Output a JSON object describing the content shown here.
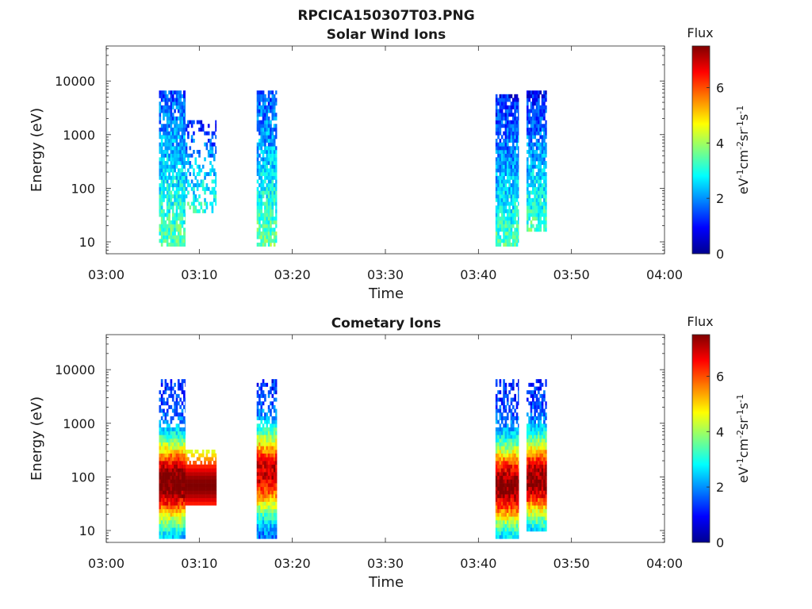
{
  "figure": {
    "filename_title": "RPCICA150307T03.PNG"
  },
  "colors": {
    "background": "#ffffff",
    "axis": "#262626",
    "colormap": "jet"
  },
  "chart_data": [
    {
      "type": "heatmap",
      "title": "Solar Wind Ions",
      "xlabel": "Time",
      "ylabel": "Energy (eV)",
      "yscale": "log",
      "xlim": [
        "03:00",
        "04:00"
      ],
      "ylim": [
        6,
        45000
      ],
      "xticks": [
        "03:00",
        "03:10",
        "03:20",
        "03:30",
        "03:40",
        "03:50",
        "04:00"
      ],
      "yticks": [
        "10",
        "100",
        "1000",
        "10000"
      ],
      "colorbar": {
        "label": "Flux",
        "unit_label": "eV-1cm-2sr-1s-1",
        "range": [
          0,
          7.5
        ],
        "ticks": [
          "0",
          "2",
          "4",
          "6"
        ]
      },
      "grid": false,
      "intervals": [
        {
          "start": "03:05:40",
          "end": "03:08:30",
          "emin": 8,
          "emax": 7000,
          "flux_low": 3.5,
          "flux_high": 1.5
        },
        {
          "start": "03:08:30",
          "end": "03:11:50",
          "emin": 35,
          "emax": 1800,
          "flux_low": 3.2,
          "flux_high": 1.2,
          "sparse": true
        },
        {
          "start": "03:16:10",
          "end": "03:18:20",
          "emin": 8,
          "emax": 7000,
          "flux_low": 3.6,
          "flux_high": 1.4
        },
        {
          "start": "03:41:50",
          "end": "03:44:20",
          "emin": 8,
          "emax": 6000,
          "flux_low": 3.4,
          "flux_high": 1.0
        },
        {
          "start": "03:45:10",
          "end": "03:47:20",
          "emin": 15,
          "emax": 7000,
          "flux_low": 3.4,
          "flux_high": 1.0
        }
      ]
    },
    {
      "type": "heatmap",
      "title": "Cometary Ions",
      "xlabel": "Time",
      "ylabel": "Energy (eV)",
      "yscale": "log",
      "xlim": [
        "03:00",
        "04:00"
      ],
      "ylim": [
        6,
        45000
      ],
      "xticks": [
        "03:00",
        "03:10",
        "03:20",
        "03:30",
        "03:40",
        "03:50",
        "04:00"
      ],
      "yticks": [
        "10",
        "100",
        "1000",
        "10000"
      ],
      "colorbar": {
        "label": "Flux",
        "unit_label": "eV-1cm-2sr-1s-1",
        "range": [
          0,
          7.5
        ],
        "ticks": [
          "0",
          "2",
          "4",
          "6"
        ]
      },
      "grid": false,
      "intervals": [
        {
          "start": "03:05:40",
          "end": "03:08:30",
          "emin": 7,
          "emax": 7000,
          "peak_energy": 80,
          "peak_flux": 6.6
        },
        {
          "start": "03:08:30",
          "end": "03:11:50",
          "emin": 28,
          "emax": 330,
          "peak_energy": 70,
          "peak_flux": 6.3,
          "constant": true
        },
        {
          "start": "03:16:10",
          "end": "03:18:20",
          "emin": 7,
          "emax": 7000,
          "peak_energy": 120,
          "peak_flux": 5.8
        },
        {
          "start": "03:41:50",
          "end": "03:44:20",
          "emin": 7,
          "emax": 6500,
          "peak_energy": 70,
          "peak_flux": 6.3
        },
        {
          "start": "03:45:10",
          "end": "03:47:20",
          "emin": 10,
          "emax": 7000,
          "peak_energy": 90,
          "peak_flux": 6.2
        }
      ]
    }
  ]
}
